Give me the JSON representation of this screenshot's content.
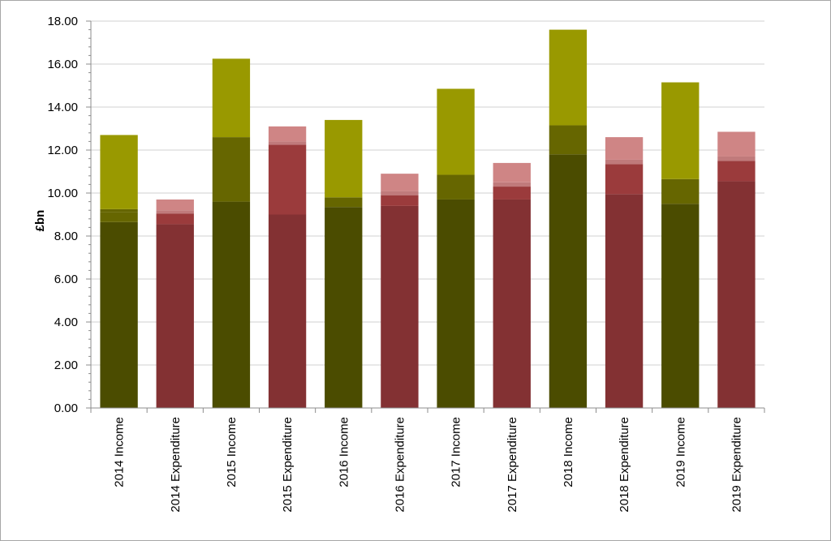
{
  "chart_data": {
    "type": "bar",
    "stacked": true,
    "title": "",
    "xlabel": "",
    "ylabel": "£bn",
    "ylim": [
      0,
      18
    ],
    "ytick_step": 2,
    "ytick_format_decimals": 2,
    "grid": true,
    "legend": "none",
    "categories": [
      "2014 Income",
      "2014 Expenditure",
      "2015 Income",
      "2015 Expenditure",
      "2016 Income",
      "2016 Expenditure",
      "2017 Income",
      "2017 Expenditure",
      "2018 Income",
      "2018 Expenditure",
      "2019 Income",
      "2019 Expenditure"
    ],
    "bars": [
      {
        "kind": "income",
        "segments": [
          8.65,
          0.45,
          0.15,
          3.45
        ]
      },
      {
        "kind": "expenditure",
        "segments": [
          8.55,
          0.5,
          0.15,
          0.5
        ]
      },
      {
        "kind": "income",
        "segments": [
          9.6,
          3.0,
          0.0,
          3.65
        ]
      },
      {
        "kind": "expenditure",
        "segments": [
          9.0,
          3.25,
          0.15,
          0.7
        ]
      },
      {
        "kind": "income",
        "segments": [
          9.35,
          0.45,
          0.0,
          3.6
        ]
      },
      {
        "kind": "expenditure",
        "segments": [
          9.4,
          0.5,
          0.2,
          0.8
        ]
      },
      {
        "kind": "income",
        "segments": [
          9.7,
          1.15,
          0.0,
          4.0
        ]
      },
      {
        "kind": "expenditure",
        "segments": [
          9.7,
          0.6,
          0.2,
          0.9
        ]
      },
      {
        "kind": "income",
        "segments": [
          11.8,
          1.35,
          0.0,
          4.45
        ]
      },
      {
        "kind": "expenditure",
        "segments": [
          9.95,
          1.4,
          0.2,
          1.05
        ]
      },
      {
        "kind": "income",
        "segments": [
          9.5,
          1.15,
          0.0,
          4.5
        ]
      },
      {
        "kind": "expenditure",
        "segments": [
          10.55,
          0.95,
          0.2,
          1.15
        ]
      }
    ],
    "colors": {
      "income": [
        "#4b4c00",
        "#666600",
        "#666600",
        "#999900"
      ],
      "expenditure": [
        "#833133",
        "#9b3b3c",
        "#c07a7b",
        "#cf8585"
      ],
      "grid": "#d0d0d0",
      "axis": "#8c8c8c"
    }
  }
}
